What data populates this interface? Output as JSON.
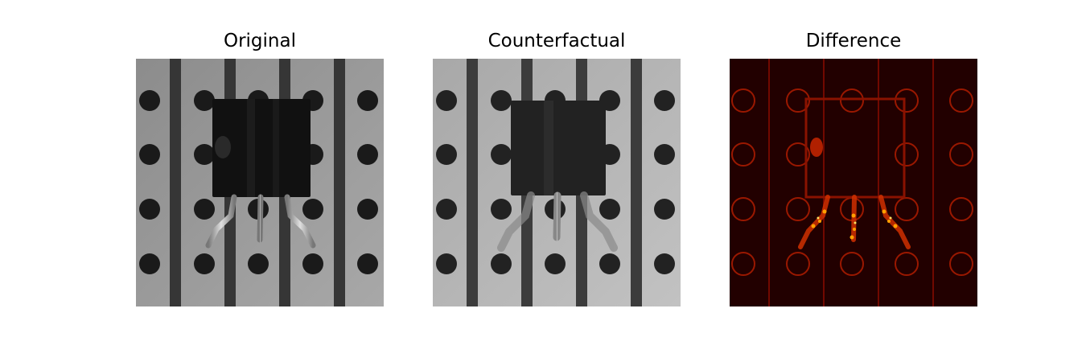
{
  "panels": [
    {
      "title": "Original"
    },
    {
      "title": "Counterfactual"
    },
    {
      "title": "Difference"
    }
  ],
  "colors": {
    "board_light": "#9a9a9a",
    "board_dark_counterfactual": "#b4b4b4",
    "strip": "#3a3a3a",
    "hole": "#1c1c1c",
    "component": "#121212",
    "lead": "#d0d0d0",
    "diff_bg": "#2a0000",
    "diff_edge": "#a01000",
    "diff_hot": "#ffb000"
  },
  "icons": [
    "transistor-component-image",
    "difference-heatmap-image"
  ]
}
